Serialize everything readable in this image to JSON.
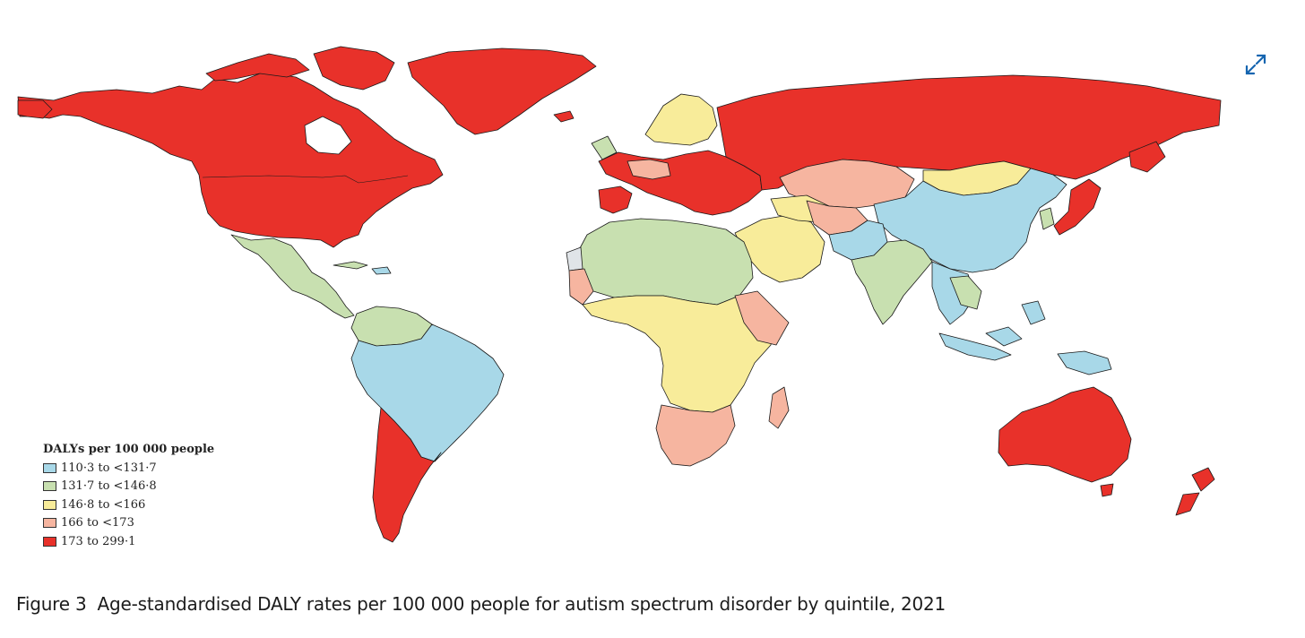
{
  "map": {
    "legend": {
      "title": "DALYs per 100 000 people",
      "items": [
        {
          "label": "110·3 to <131·7",
          "color": "#a8d8e8"
        },
        {
          "label": "131·7 to <146·8",
          "color": "#c8e0b0"
        },
        {
          "label": "146·8 to <166",
          "color": "#f8ec9a"
        },
        {
          "label": "166 to <173",
          "color": "#f6b5a0"
        },
        {
          "label": "173 to 299·1",
          "color": "#e8312a"
        }
      ]
    },
    "no_data_color": "#e0e4e8",
    "regions": {
      "north_america": "173 to 299·1",
      "greenland": "173 to 299·1",
      "mexico_central_america": "131·7 to <146·8",
      "brazil_north_south_america": "110·3 to <131·7",
      "southern_cone": "173 to 299·1",
      "russia": "173 to 299·1",
      "western_europe": "173 to 299·1",
      "china": "110·3 to <131·7",
      "india": "131·7 to <146·8",
      "australia_nz": "173 to 299·1",
      "japan": "173 to 299·1",
      "southern_africa": "166 to <173"
    }
  },
  "figure": {
    "label": "Figure 3",
    "caption": "Age-standardised DALY rates per 100 000 people for autism spectrum disorder by quintile, 2021"
  },
  "icons": {
    "expand": "expand-arrows-icon"
  }
}
